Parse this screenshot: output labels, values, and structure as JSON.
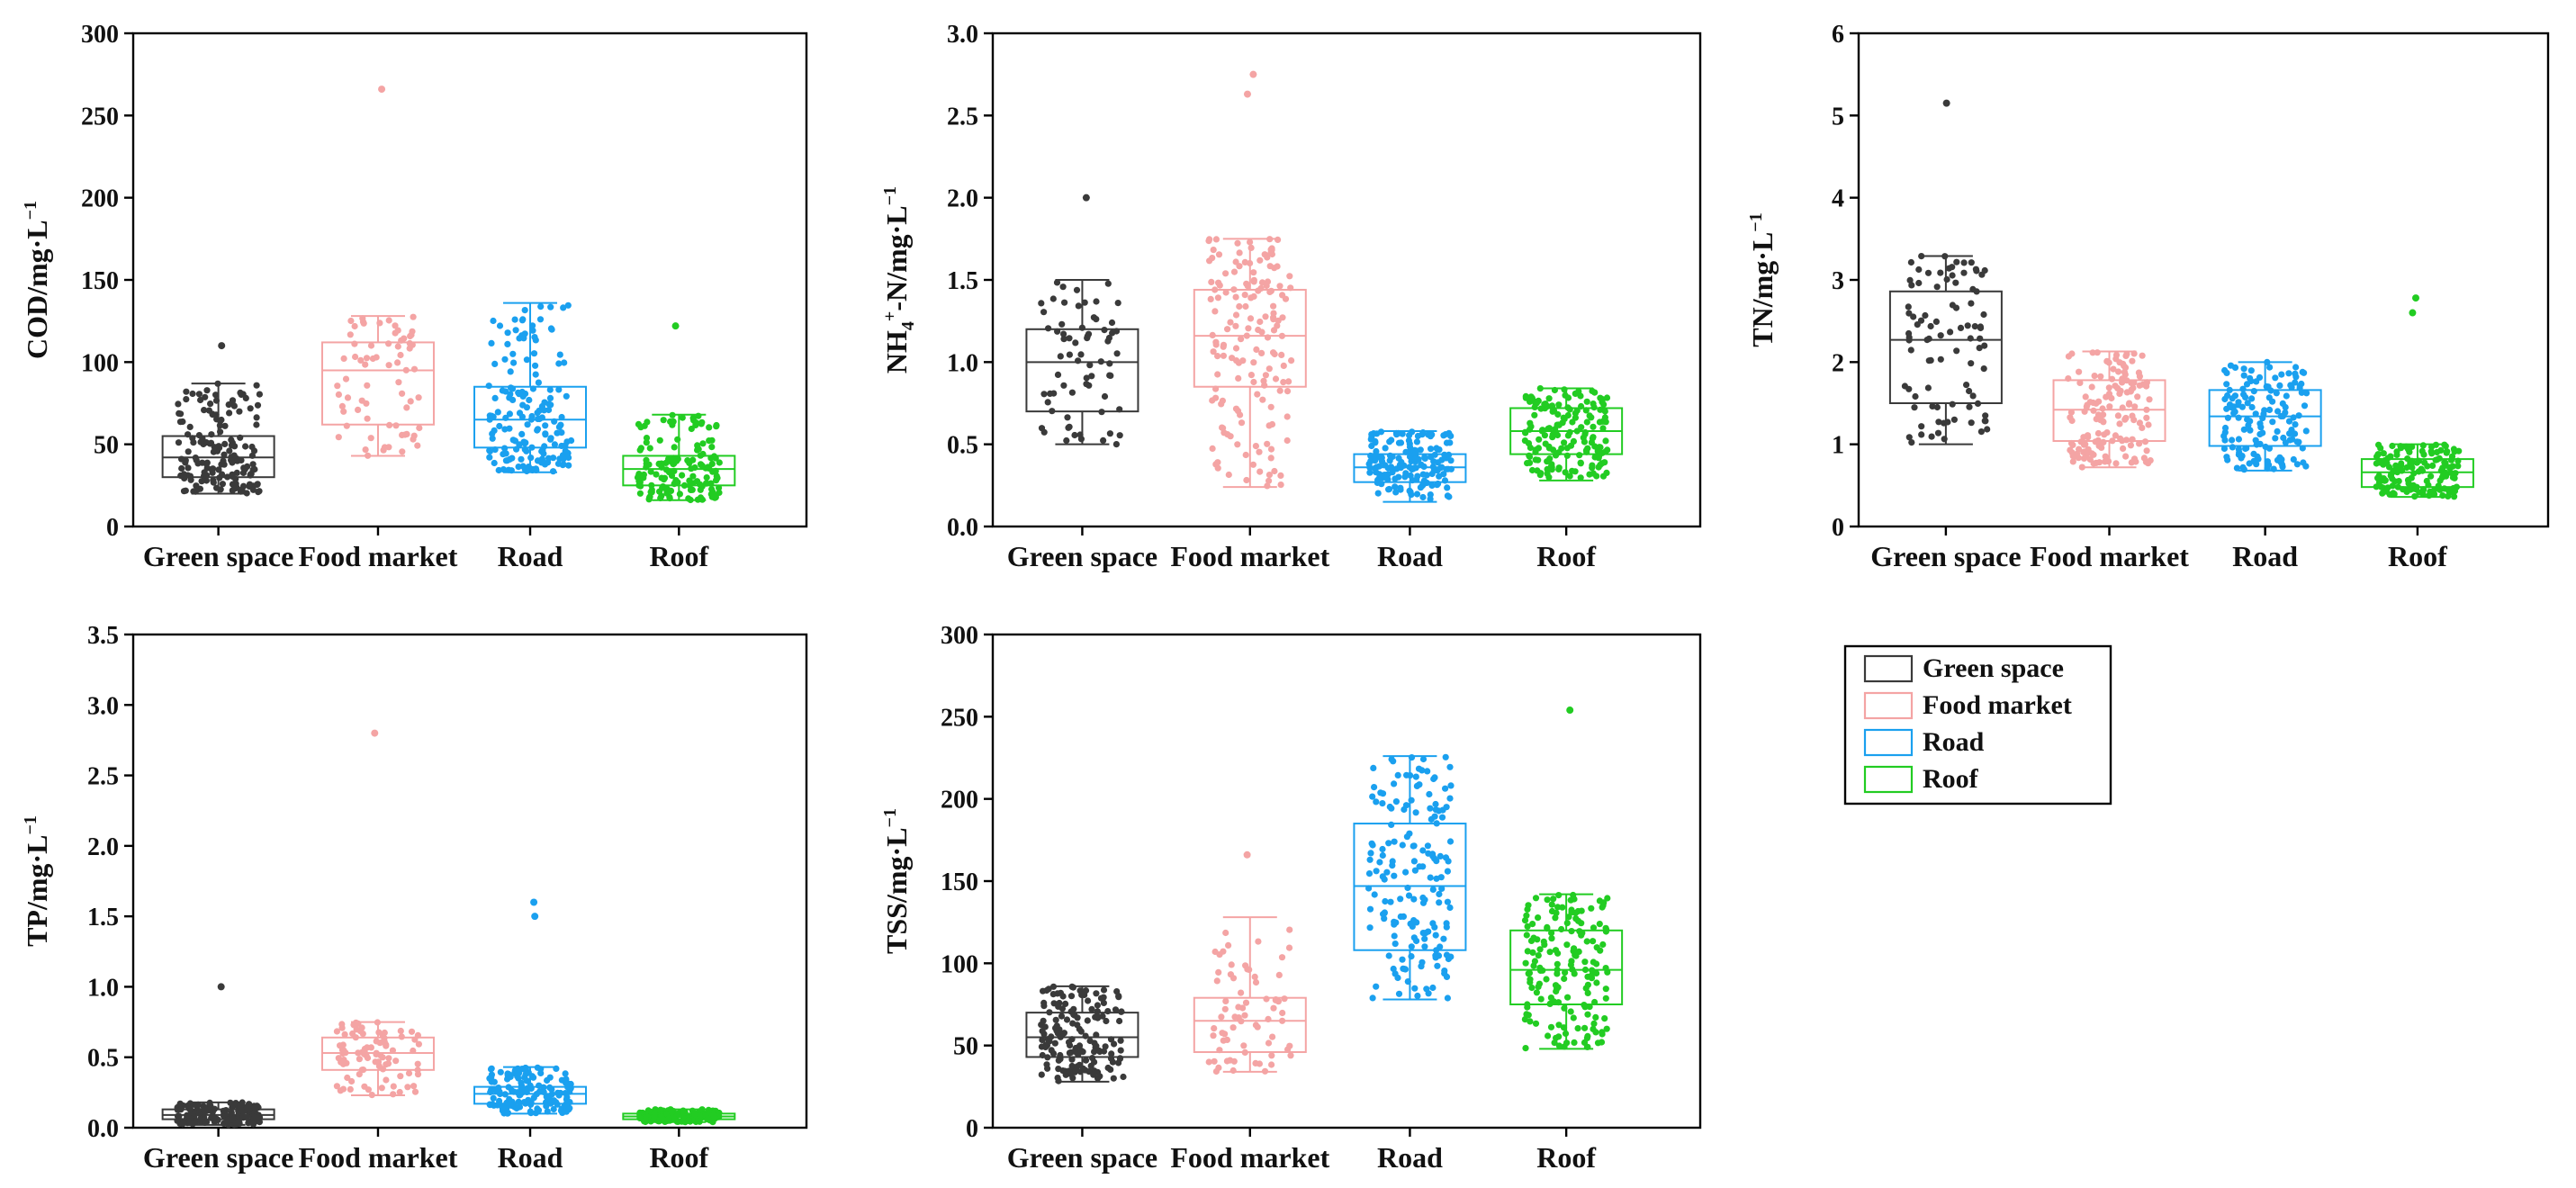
{
  "palette": {
    "green_space": "#3a3a3a",
    "food_market": "#f4a4a4",
    "road": "#1aa0ef",
    "roof": "#22cc22"
  },
  "legend": {
    "items": [
      {
        "key": "green_space",
        "label": "Green space"
      },
      {
        "key": "food_market",
        "label": "Food market"
      },
      {
        "key": "road",
        "label": "Road"
      },
      {
        "key": "roof",
        "label": "Roof"
      }
    ]
  },
  "chart_data": [
    {
      "type": "box",
      "ylabel": "COD/mg·L−1",
      "ylabel_parts": {
        "main": "COD/mg·L",
        "sup": "−1"
      },
      "ylim": [
        0,
        300
      ],
      "yticks": [
        "0",
        "50",
        "100",
        "150",
        "200",
        "250",
        "300"
      ],
      "tick_values": [
        0,
        50,
        100,
        150,
        200,
        250,
        300
      ],
      "categories": [
        "Green space",
        "Food market",
        "Road",
        "Roof"
      ],
      "series": [
        {
          "name": "Green space",
          "min": 20,
          "q1": 30,
          "median": 42,
          "q3": 55,
          "max": 87,
          "n": 160,
          "outliers": [
            110
          ]
        },
        {
          "name": "Food market",
          "min": 43,
          "q1": 62,
          "median": 95,
          "q3": 112,
          "max": 128,
          "n": 70,
          "outliers": [
            266
          ]
        },
        {
          "name": "Road",
          "min": 33,
          "q1": 48,
          "median": 65,
          "q3": 85,
          "max": 136,
          "n": 170,
          "outliers": []
        },
        {
          "name": "Roof",
          "min": 16,
          "q1": 25,
          "median": 35,
          "q3": 43,
          "max": 68,
          "n": 150,
          "outliers": [
            122
          ]
        }
      ]
    },
    {
      "type": "box",
      "ylabel": "NH4+-N/mg·L−1",
      "ylabel_parts": {
        "main": "NH",
        "sub": "4",
        "sup1": "+",
        "mid": "-N/mg·L",
        "sup": "−1"
      },
      "ylim": [
        0,
        3
      ],
      "yticks": [
        "0.0",
        "0.5",
        "1.0",
        "1.5",
        "2.0",
        "2.5",
        "3.0"
      ],
      "tick_values": [
        0,
        0.5,
        1,
        1.5,
        2,
        2.5,
        3
      ],
      "categories": [
        "Green space",
        "Food market",
        "Road",
        "Roof"
      ],
      "series": [
        {
          "name": "Green space",
          "min": 0.5,
          "q1": 0.7,
          "median": 1.0,
          "q3": 1.2,
          "max": 1.5,
          "n": 70,
          "outliers": [
            2.0
          ]
        },
        {
          "name": "Food market",
          "min": 0.24,
          "q1": 0.85,
          "median": 1.16,
          "q3": 1.44,
          "max": 1.75,
          "n": 160,
          "outliers": [
            2.63,
            2.75
          ]
        },
        {
          "name": "Road",
          "min": 0.15,
          "q1": 0.27,
          "median": 0.36,
          "q3": 0.44,
          "max": 0.58,
          "n": 160,
          "outliers": []
        },
        {
          "name": "Roof",
          "min": 0.28,
          "q1": 0.44,
          "median": 0.58,
          "q3": 0.72,
          "max": 0.84,
          "n": 170,
          "outliers": []
        }
      ]
    },
    {
      "type": "box",
      "ylabel": "TN/mg·L−1",
      "ylabel_parts": {
        "main": "TN/mg·L",
        "sup": "−1"
      },
      "ylim": [
        0,
        6
      ],
      "yticks": [
        "0",
        "1",
        "2",
        "3",
        "4",
        "5",
        "6"
      ],
      "tick_values": [
        0,
        1,
        2,
        3,
        4,
        5,
        6
      ],
      "categories": [
        "Green space",
        "Food market",
        "Road",
        "Roof"
      ],
      "series": [
        {
          "name": "Green space",
          "min": 1.0,
          "q1": 1.5,
          "median": 2.27,
          "q3": 2.86,
          "max": 3.29,
          "n": 90,
          "outliers": [
            5.15
          ]
        },
        {
          "name": "Food market",
          "min": 0.72,
          "q1": 1.04,
          "median": 1.42,
          "q3": 1.78,
          "max": 2.13,
          "n": 150,
          "outliers": []
        },
        {
          "name": "Road",
          "min": 0.68,
          "q1": 0.98,
          "median": 1.34,
          "q3": 1.66,
          "max": 2.0,
          "n": 150,
          "outliers": []
        },
        {
          "name": "Roof",
          "min": 0.36,
          "q1": 0.48,
          "median": 0.66,
          "q3": 0.82,
          "max": 1.0,
          "n": 150,
          "outliers": [
            2.6,
            2.78
          ]
        }
      ]
    },
    {
      "type": "box",
      "ylabel": "TP/mg·L−1",
      "ylabel_parts": {
        "main": "TP/mg·L",
        "sup": "−1"
      },
      "ylim": [
        0,
        3.5
      ],
      "yticks": [
        "0.0",
        "0.5",
        "1.0",
        "1.5",
        "2.0",
        "2.5",
        "3.0",
        "3.5"
      ],
      "tick_values": [
        0,
        0.5,
        1,
        1.5,
        2,
        2.5,
        3,
        3.5
      ],
      "categories": [
        "Green space",
        "Food market",
        "Road",
        "Roof"
      ],
      "series": [
        {
          "name": "Green space",
          "min": 0.02,
          "q1": 0.06,
          "median": 0.09,
          "q3": 0.13,
          "max": 0.18,
          "n": 150,
          "outliers": [
            1.0
          ]
        },
        {
          "name": "Food market",
          "min": 0.23,
          "q1": 0.41,
          "median": 0.53,
          "q3": 0.64,
          "max": 0.75,
          "n": 90,
          "outliers": [
            2.8
          ]
        },
        {
          "name": "Road",
          "min": 0.1,
          "q1": 0.17,
          "median": 0.24,
          "q3": 0.29,
          "max": 0.43,
          "n": 150,
          "outliers": [
            1.5,
            1.6
          ]
        },
        {
          "name": "Roof",
          "min": 0.04,
          "q1": 0.06,
          "median": 0.08,
          "q3": 0.1,
          "max": 0.13,
          "n": 150,
          "outliers": []
        }
      ]
    },
    {
      "type": "box",
      "ylabel": "TSS/mg·L−1",
      "ylabel_parts": {
        "main": "TSS/mg·L",
        "sup": "−1"
      },
      "ylim": [
        0,
        300
      ],
      "yticks": [
        "0",
        "50",
        "100",
        "150",
        "200",
        "250",
        "300"
      ],
      "tick_values": [
        0,
        50,
        100,
        150,
        200,
        250,
        300
      ],
      "categories": [
        "Green space",
        "Food market",
        "Road",
        "Roof"
      ],
      "series": [
        {
          "name": "Green space",
          "min": 28,
          "q1": 43,
          "median": 55,
          "q3": 70,
          "max": 86,
          "n": 160,
          "outliers": []
        },
        {
          "name": "Food market",
          "min": 34,
          "q1": 46,
          "median": 65,
          "q3": 79,
          "max": 128,
          "n": 70,
          "outliers": [
            166
          ]
        },
        {
          "name": "Road",
          "min": 78,
          "q1": 108,
          "median": 147,
          "q3": 185,
          "max": 226,
          "n": 170,
          "outliers": []
        },
        {
          "name": "Roof",
          "min": 48,
          "q1": 75,
          "median": 96,
          "q3": 120,
          "max": 142,
          "n": 170,
          "outliers": [
            254
          ]
        }
      ]
    }
  ]
}
